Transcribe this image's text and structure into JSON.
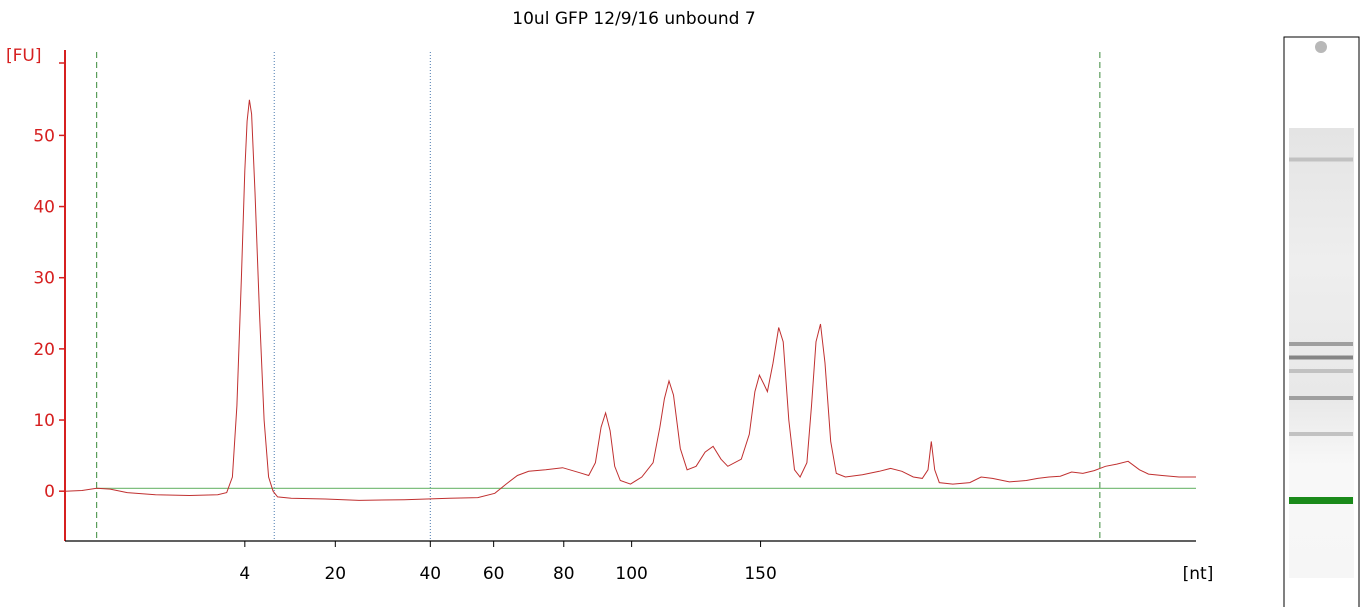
{
  "chart_data": {
    "type": "line",
    "title": "10ul GFP 12/9/16 unbound 7",
    "ylabel": "[FU]",
    "xlabel": "[nt]",
    "ylim": [
      -7,
      62
    ],
    "y_ticks": [
      0,
      10,
      20,
      30,
      40,
      50
    ],
    "x_ticks": [
      "4",
      "20",
      "40",
      "60",
      "80",
      "100",
      "150"
    ],
    "x_axis_note": "nonlinear nucleotide size axis; trace sampled in seconds-equivalent index 0-100 across plot width",
    "series": [
      {
        "values": [
          [
            0,
            0.0
          ],
          [
            1.5,
            0.1
          ],
          [
            2.8,
            0.4
          ],
          [
            4.0,
            0.3
          ],
          [
            5.5,
            -0.2
          ],
          [
            8.0,
            -0.5
          ],
          [
            11.0,
            -0.6
          ],
          [
            13.5,
            -0.5
          ],
          [
            14.3,
            -0.2
          ],
          [
            14.8,
            2.0
          ],
          [
            15.2,
            12.0
          ],
          [
            15.6,
            30.0
          ],
          [
            15.9,
            45.0
          ],
          [
            16.1,
            52.0
          ],
          [
            16.3,
            55.0
          ],
          [
            16.5,
            53.0
          ],
          [
            16.8,
            42.0
          ],
          [
            17.2,
            25.0
          ],
          [
            17.6,
            10.0
          ],
          [
            18.0,
            2.0
          ],
          [
            18.4,
            0.0
          ],
          [
            18.8,
            -0.8
          ],
          [
            20.0,
            -1.0
          ],
          [
            23.0,
            -1.1
          ],
          [
            26.0,
            -1.3
          ],
          [
            30.0,
            -1.2
          ],
          [
            34.0,
            -1.0
          ],
          [
            36.5,
            -0.9
          ],
          [
            38.0,
            -0.3
          ],
          [
            39.0,
            1.0
          ],
          [
            40.0,
            2.2
          ],
          [
            41.0,
            2.8
          ],
          [
            42.5,
            3.0
          ],
          [
            44.0,
            3.3
          ],
          [
            45.5,
            2.6
          ],
          [
            46.3,
            2.2
          ],
          [
            46.9,
            4.0
          ],
          [
            47.4,
            9.0
          ],
          [
            47.8,
            11.0
          ],
          [
            48.2,
            8.5
          ],
          [
            48.6,
            3.5
          ],
          [
            49.1,
            1.5
          ],
          [
            50.0,
            1.0
          ],
          [
            51.0,
            2.0
          ],
          [
            52.0,
            4.0
          ],
          [
            52.6,
            9.0
          ],
          [
            53.0,
            13.0
          ],
          [
            53.4,
            15.5
          ],
          [
            53.8,
            13.5
          ],
          [
            54.4,
            6.0
          ],
          [
            55.0,
            3.0
          ],
          [
            55.8,
            3.5
          ],
          [
            56.6,
            5.5
          ],
          [
            57.3,
            6.3
          ],
          [
            58.0,
            4.5
          ],
          [
            58.6,
            3.5
          ],
          [
            59.8,
            4.5
          ],
          [
            60.5,
            8.0
          ],
          [
            61.0,
            14.0
          ],
          [
            61.4,
            16.3
          ],
          [
            61.8,
            15.0
          ],
          [
            62.1,
            14.0
          ],
          [
            62.6,
            18.0
          ],
          [
            63.1,
            23.0
          ],
          [
            63.5,
            21.0
          ],
          [
            64.0,
            10.0
          ],
          [
            64.5,
            3.0
          ],
          [
            65.0,
            2.0
          ],
          [
            65.6,
            4.0
          ],
          [
            66.0,
            12.0
          ],
          [
            66.4,
            21.0
          ],
          [
            66.8,
            23.5
          ],
          [
            67.2,
            18.0
          ],
          [
            67.7,
            7.0
          ],
          [
            68.2,
            2.5
          ],
          [
            69.0,
            2.0
          ],
          [
            70.5,
            2.3
          ],
          [
            72.0,
            2.8
          ],
          [
            73.0,
            3.2
          ],
          [
            74.0,
            2.8
          ],
          [
            75.0,
            2.0
          ],
          [
            75.8,
            1.8
          ],
          [
            76.3,
            3.0
          ],
          [
            76.6,
            7.0
          ],
          [
            76.9,
            3.0
          ],
          [
            77.3,
            1.2
          ],
          [
            78.5,
            1.0
          ],
          [
            80.0,
            1.2
          ],
          [
            81.0,
            2.0
          ],
          [
            82.0,
            1.8
          ],
          [
            83.5,
            1.3
          ],
          [
            85.0,
            1.5
          ],
          [
            86.0,
            1.8
          ],
          [
            87.0,
            2.0
          ],
          [
            88.0,
            2.1
          ],
          [
            89.0,
            2.7
          ],
          [
            90.0,
            2.5
          ],
          [
            91.0,
            2.9
          ],
          [
            92.0,
            3.5
          ],
          [
            93.0,
            3.8
          ],
          [
            94.0,
            4.2
          ],
          [
            95.0,
            3.0
          ],
          [
            95.8,
            2.4
          ],
          [
            97.0,
            2.2
          ],
          [
            98.5,
            2.0
          ],
          [
            100.0,
            2.0
          ]
        ]
      }
    ],
    "baseline": 0.4,
    "colors": {
      "axis": "#d62020",
      "trace": "#c03030",
      "baseline": "#7fbf7f",
      "marker_dashed": "#3a8a3a",
      "marker_dotted": "#4a7ab0"
    },
    "vertical_markers": [
      {
        "x": 2.8,
        "style": "dashed"
      },
      {
        "x": 18.5,
        "style": "dotted"
      },
      {
        "x": 32.3,
        "style": "dotted"
      },
      {
        "x": 91.5,
        "style": "dashed"
      }
    ],
    "x_tick_positions": [
      15.9,
      23.9,
      32.3,
      37.9,
      44.1,
      50.1,
      61.5
    ],
    "gel_lane": {
      "bands": [
        {
          "pos": 0.07,
          "intensity": 0.35
        },
        {
          "pos": 0.48,
          "intensity": 0.55
        },
        {
          "pos": 0.51,
          "intensity": 0.7
        },
        {
          "pos": 0.54,
          "intensity": 0.35
        },
        {
          "pos": 0.6,
          "intensity": 0.55
        },
        {
          "pos": 0.68,
          "intensity": 0.35
        }
      ],
      "marker_color": "#1a8a1a"
    }
  }
}
